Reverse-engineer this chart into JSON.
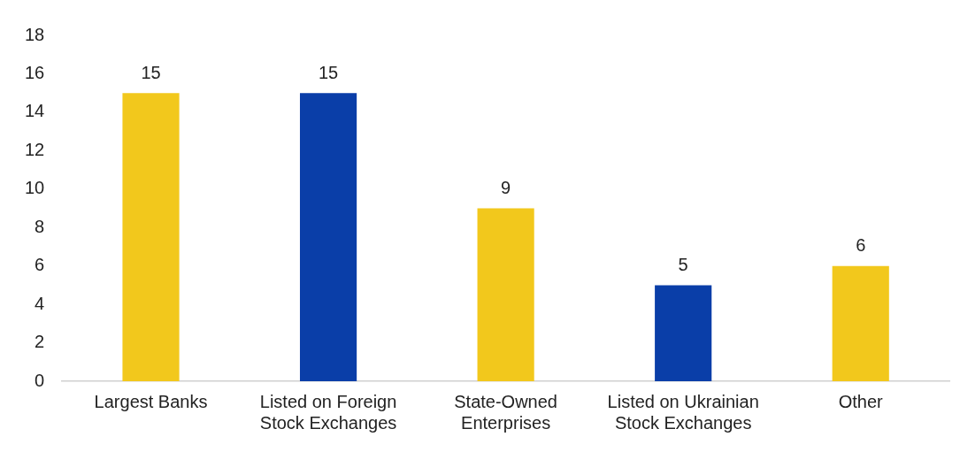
{
  "chart_data": {
    "type": "bar",
    "categories": [
      "Largest Banks",
      "Listed on Foreign Stock Exchanges",
      "State-Owned Enterprises",
      "Listed on Ukrainian Stock Exchanges",
      "Other"
    ],
    "values": [
      15,
      15,
      9,
      5,
      6
    ],
    "colors": [
      "#f2c81c",
      "#0a3ea8",
      "#f2c81c",
      "#0a3ea8",
      "#f2c81c"
    ],
    "ylim": [
      0,
      18
    ],
    "yticks": [
      0,
      2,
      4,
      6,
      8,
      10,
      12,
      14,
      16,
      18
    ],
    "grid": false,
    "legend": false,
    "data_labels": true
  }
}
